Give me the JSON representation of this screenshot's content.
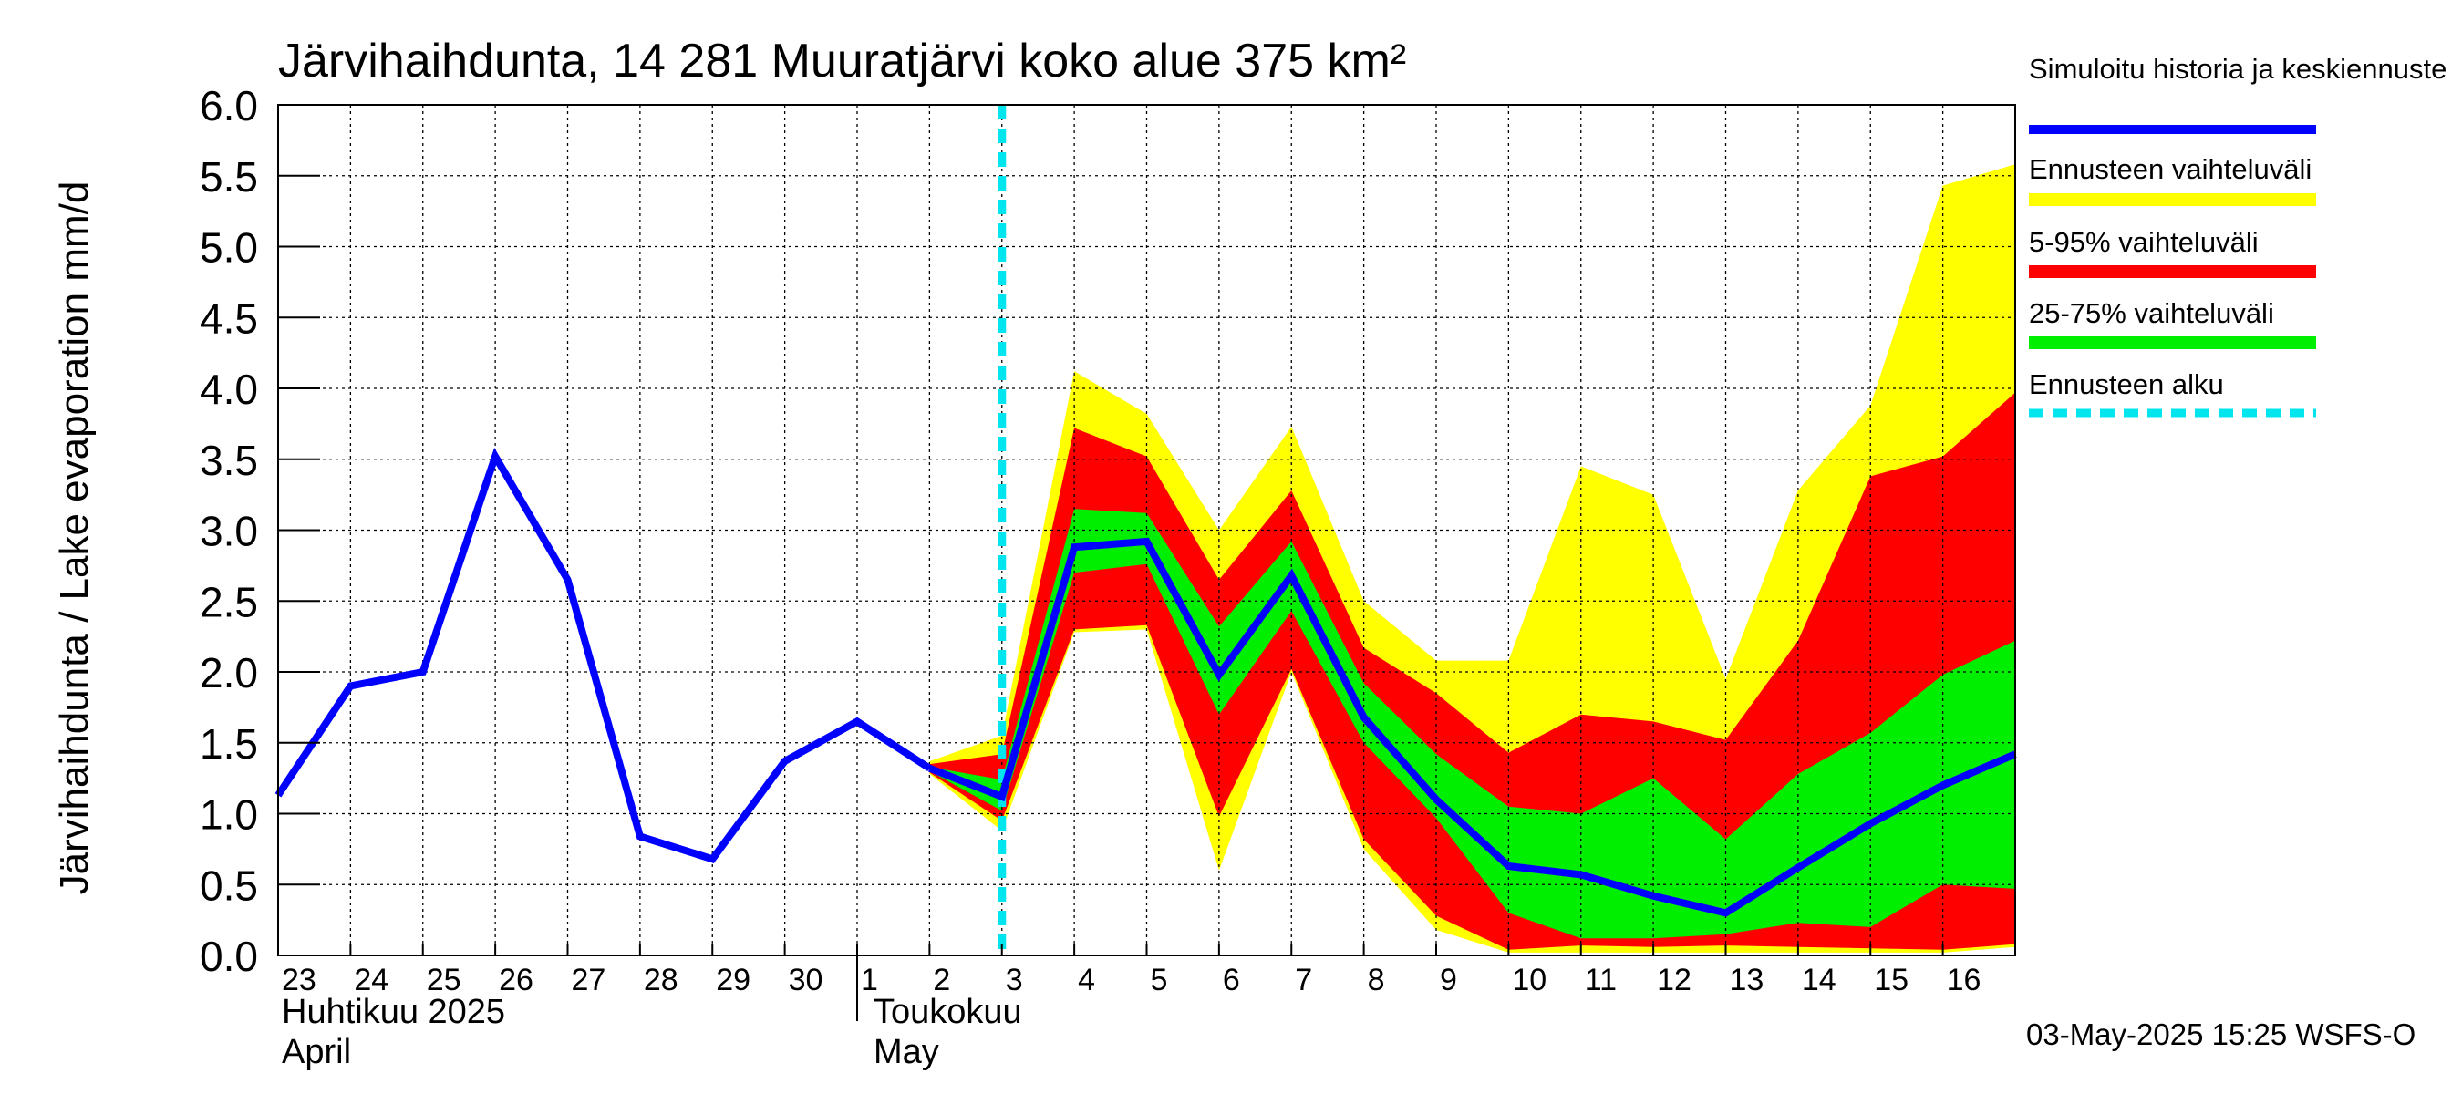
{
  "chart_data": {
    "type": "area",
    "title": "Järvihaihdunta, 14 281 Muuratjärvi koko alue 375 km²",
    "ylabel": "Järvihaihdunta / Lake evaporation   mm/d",
    "ylim": [
      0,
      6.0
    ],
    "y_ticks": [
      "0.0",
      "0.5",
      "1.0",
      "1.5",
      "2.0",
      "2.5",
      "3.0",
      "3.5",
      "4.0",
      "4.5",
      "5.0",
      "5.5",
      "6.0"
    ],
    "x_ticks": [
      "23",
      "24",
      "25",
      "26",
      "27",
      "28",
      "29",
      "30",
      "1",
      "2",
      "3",
      "4",
      "5",
      "6",
      "7",
      "8",
      "9",
      "10",
      "11",
      "12",
      "13",
      "14",
      "15",
      "16"
    ],
    "month_labels": [
      {
        "line1": "Huhtikuu  2025",
        "line2": "April"
      },
      {
        "line1": "Toukokuu",
        "line2": "May"
      }
    ],
    "grid": true,
    "legend_position": "right",
    "legend": [
      {
        "label": "Simuloitu historia ja keskiennuste",
        "color": "#0000ff",
        "style": "line"
      },
      {
        "label": "Ennusteen vaihteluväli",
        "color": "#ffff00",
        "style": "band"
      },
      {
        "label": "5-95% vaihteluväli",
        "color": "#ff0000",
        "style": "band"
      },
      {
        "label": "25-75% vaihteluväli",
        "color": "#00ee00",
        "style": "band"
      },
      {
        "label": "Ennusteen alku",
        "color": "#00e5ee",
        "style": "dashed"
      }
    ],
    "forecast_start": "2025-05-03",
    "history": {
      "x": [
        "2025-04-23",
        "2025-04-24",
        "2025-04-25",
        "2025-04-26",
        "2025-04-27",
        "2025-04-28",
        "2025-04-29",
        "2025-04-30",
        "2025-05-01",
        "2025-05-02"
      ],
      "values": [
        1.13,
        1.9,
        2.0,
        3.52,
        2.65,
        0.84,
        0.68,
        1.37,
        1.65,
        1.32
      ]
    },
    "forecast": {
      "x": [
        "2025-05-02",
        "2025-05-03",
        "2025-05-04",
        "2025-05-05",
        "2025-05-06",
        "2025-05-07",
        "2025-05-08",
        "2025-05-09",
        "2025-05-10",
        "2025-05-11",
        "2025-05-12",
        "2025-05-13",
        "2025-05-14",
        "2025-05-15",
        "2025-05-16",
        "2025-05-17"
      ],
      "median": [
        1.32,
        1.12,
        2.88,
        2.92,
        1.98,
        2.68,
        1.68,
        1.1,
        0.63,
        0.57,
        0.42,
        0.3,
        0.62,
        0.93,
        1.2,
        1.42
      ],
      "p25": [
        1.3,
        1.02,
        2.7,
        2.76,
        1.7,
        2.43,
        1.5,
        0.97,
        0.3,
        0.12,
        0.12,
        0.15,
        0.23,
        0.2,
        0.5,
        0.47
      ],
      "p75": [
        1.33,
        1.24,
        3.15,
        3.12,
        2.32,
        2.92,
        1.92,
        1.42,
        1.05,
        1.0,
        1.25,
        0.82,
        1.28,
        1.57,
        1.98,
        2.22
      ],
      "p5": [
        1.29,
        0.95,
        2.3,
        2.33,
        0.98,
        2.02,
        0.82,
        0.28,
        0.04,
        0.07,
        0.06,
        0.07,
        0.06,
        0.05,
        0.04,
        0.08
      ],
      "p95": [
        1.35,
        1.42,
        3.72,
        3.52,
        2.65,
        3.28,
        2.17,
        1.85,
        1.43,
        1.7,
        1.65,
        1.52,
        2.22,
        3.38,
        3.52,
        3.97
      ],
      "min": [
        1.28,
        0.88,
        2.28,
        2.3,
        0.6,
        2.0,
        0.75,
        0.18,
        0.02,
        0.02,
        0.02,
        0.02,
        0.02,
        0.02,
        0.02,
        0.06
      ],
      "max": [
        1.37,
        1.55,
        4.12,
        3.82,
        3.0,
        3.73,
        2.5,
        2.08,
        2.08,
        3.45,
        3.25,
        1.95,
        3.28,
        3.88,
        5.43,
        5.58
      ]
    },
    "footer": "03-May-2025 15:25 WSFS-O"
  }
}
